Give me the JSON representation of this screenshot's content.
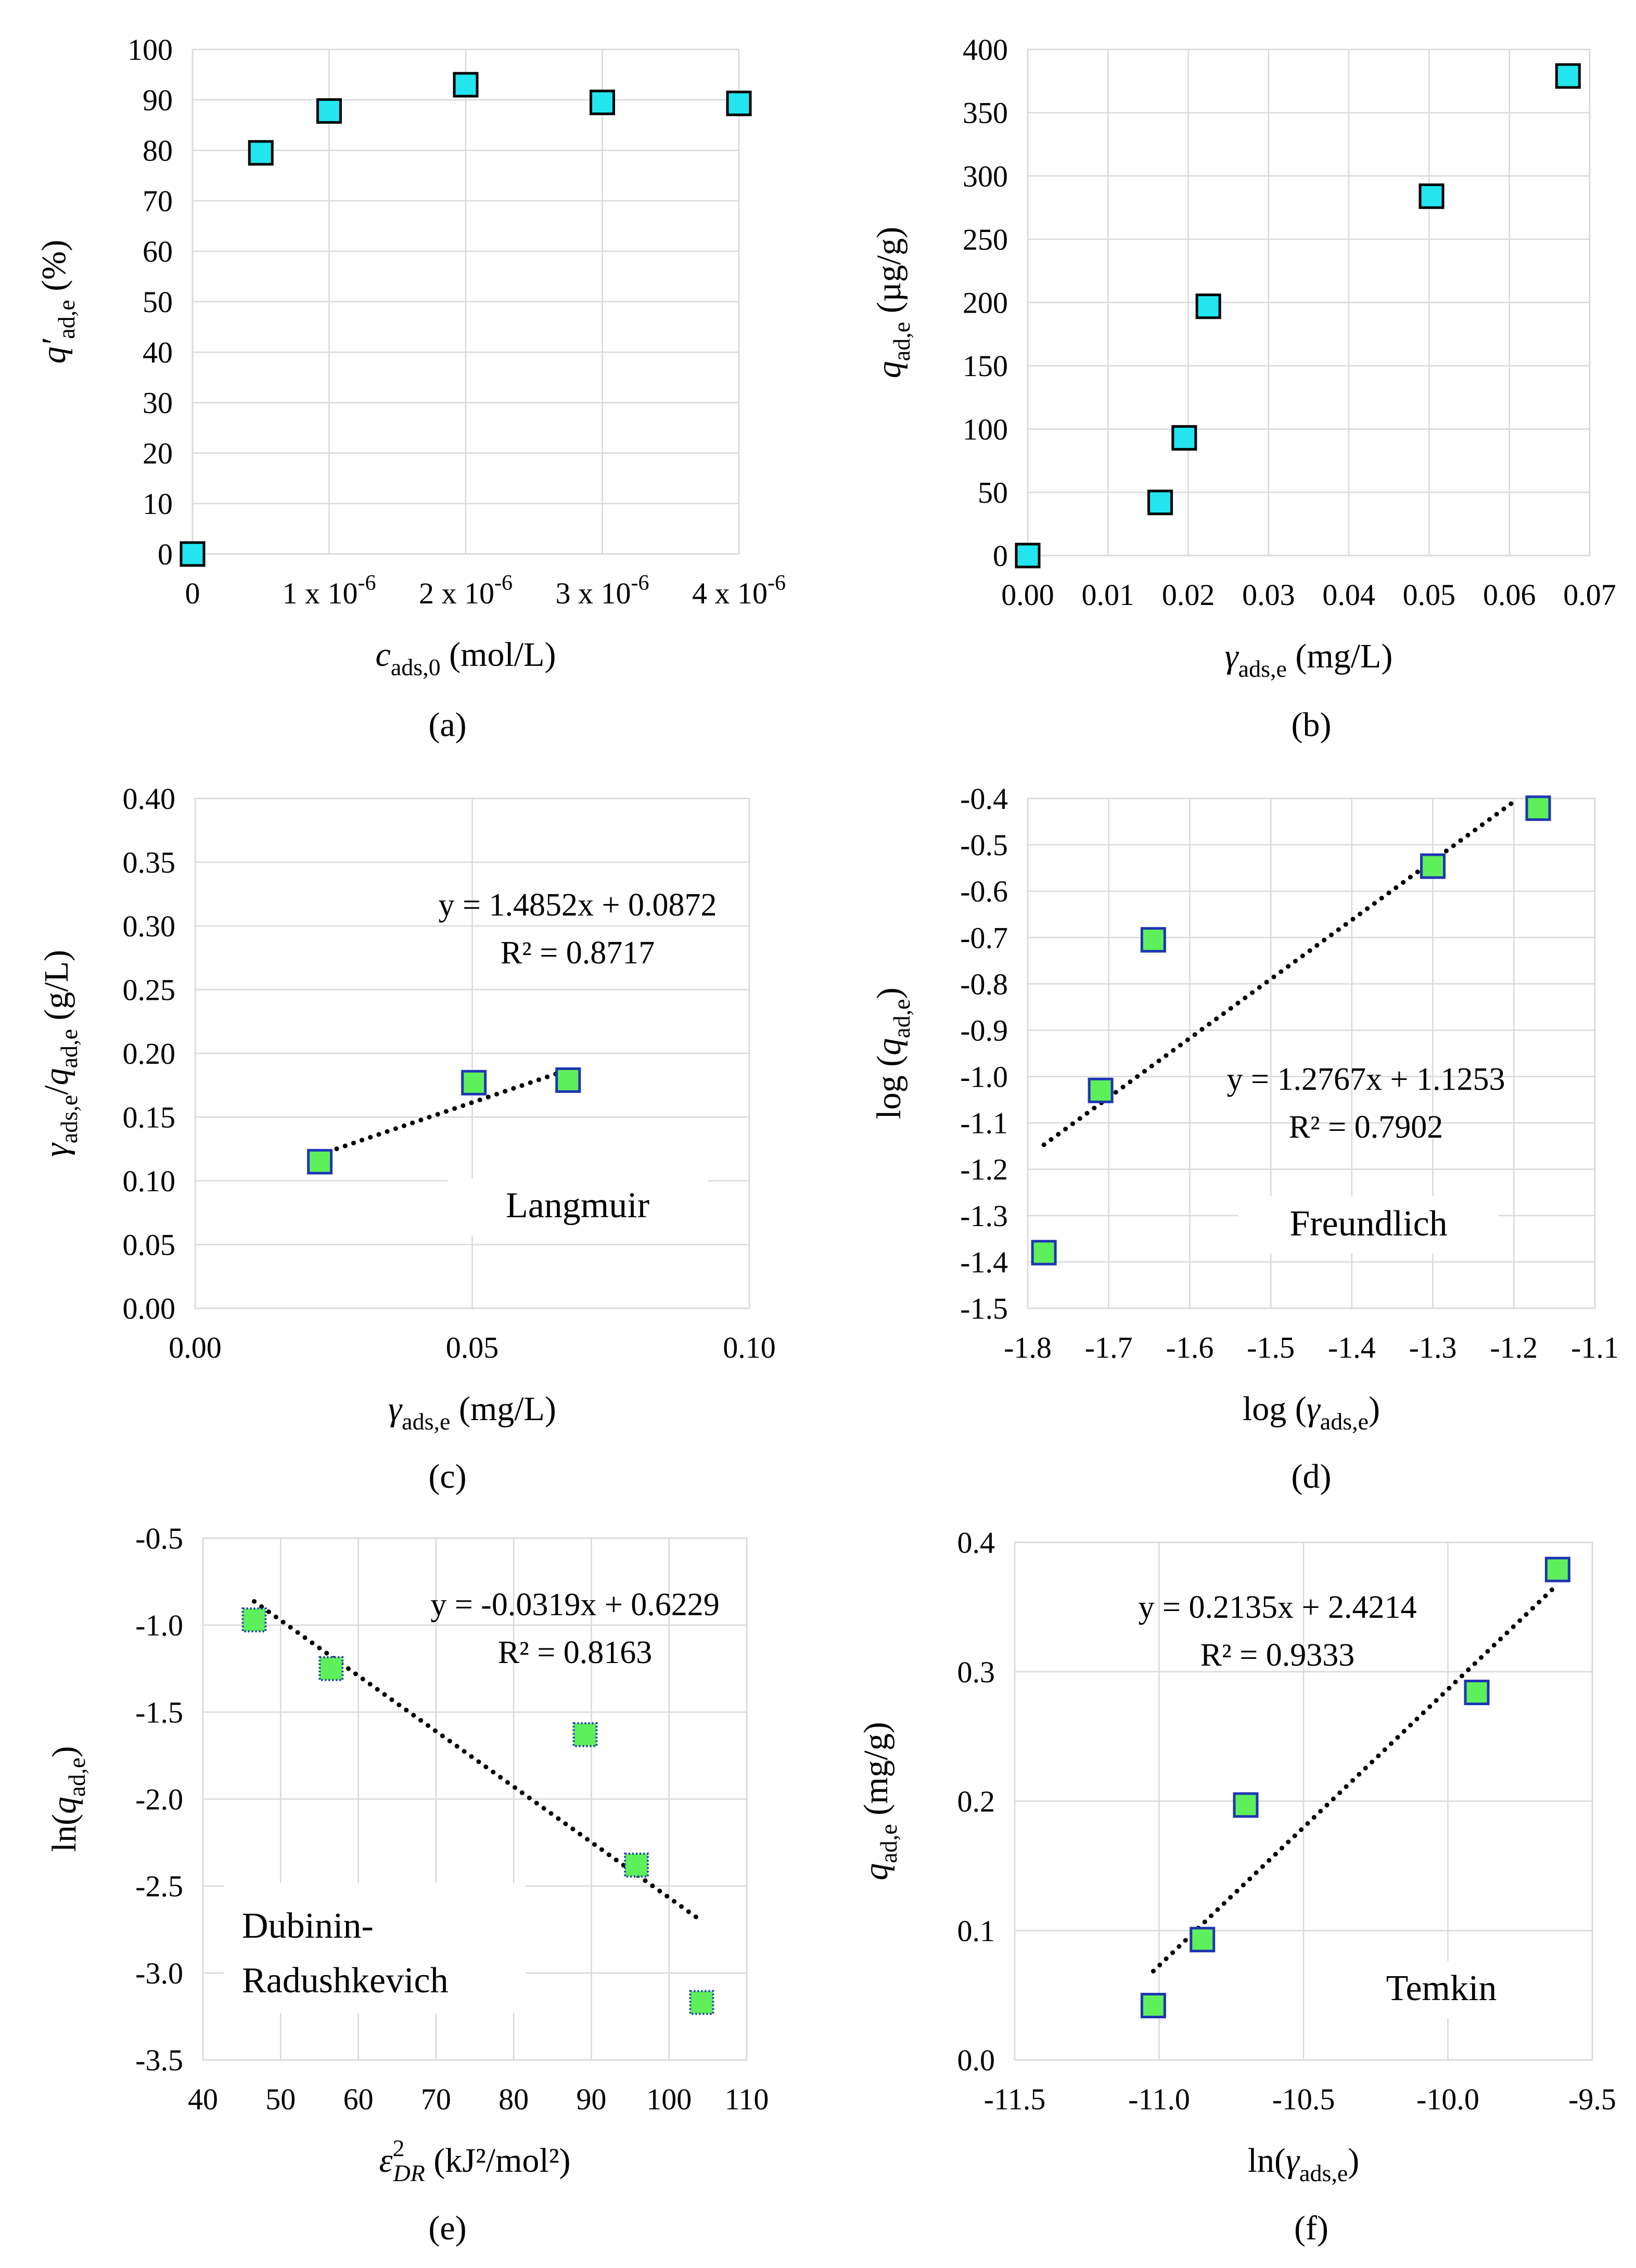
{
  "figure_title": "",
  "colors": {
    "cyan_marker": "#22e5f0",
    "green_marker": "#5ef05a",
    "marker_edge": "#000000",
    "marker_edge_blue": "#1f35b4",
    "grid": "#d9d9d9",
    "trend": "#000000"
  },
  "chart_data": [
    {
      "id": "a",
      "type": "scatter",
      "panel_label": "(a)",
      "xlabel_parts": {
        "sym": "c",
        "sub": "ads,0",
        "unit": " (mol/L)"
      },
      "ylabel_parts": {
        "sym": "q′",
        "sub": "ad,e",
        "unit": " (%)"
      },
      "x": [
        0,
        5e-07,
        1e-06,
        2e-06,
        3e-06,
        4e-06
      ],
      "y": [
        0,
        79.5,
        87.8,
        93.0,
        89.5,
        89.3
      ],
      "xlim": [
        0,
        4e-06
      ],
      "ylim": [
        0,
        100
      ],
      "xticks": [
        {
          "v": 0,
          "m": "0",
          "e": ""
        },
        {
          "v": 1e-06,
          "m": "1 x 10",
          "e": "-6"
        },
        {
          "v": 2e-06,
          "m": "2 x 10",
          "e": "-6"
        },
        {
          "v": 3e-06,
          "m": "3 x 10",
          "e": "-6"
        },
        {
          "v": 4e-06,
          "m": "4 x 10",
          "e": "-6"
        }
      ],
      "yticks": [
        0,
        10,
        20,
        30,
        40,
        50,
        60,
        70,
        80,
        90,
        100
      ],
      "ytick_labels": [
        "0",
        "10",
        "20",
        "30",
        "40",
        "50",
        "60",
        "70",
        "80",
        "90",
        "100"
      ],
      "marker": "cyan",
      "trendline": null,
      "equation": "",
      "r2": "",
      "isotherm_name": ""
    },
    {
      "id": "b",
      "type": "scatter",
      "panel_label": "(b)",
      "xlabel_parts": {
        "sym": "γ",
        "sub": "ads,e",
        "unit": " (mg/L)"
      },
      "ylabel_parts": {
        "sym": "q",
        "sub": "ad,e",
        "unit": " (µg/g)"
      },
      "x": [
        0,
        0.0165,
        0.0195,
        0.0225,
        0.0503,
        0.0673
      ],
      "y": [
        0,
        42,
        93,
        197,
        284,
        379
      ],
      "xlim": [
        0,
        0.07
      ],
      "ylim": [
        0,
        400
      ],
      "xticks": [
        {
          "v": 0,
          "m": "0.00",
          "e": ""
        },
        {
          "v": 0.01,
          "m": "0.01",
          "e": ""
        },
        {
          "v": 0.02,
          "m": "0.02",
          "e": ""
        },
        {
          "v": 0.03,
          "m": "0.03",
          "e": ""
        },
        {
          "v": 0.04,
          "m": "0.04",
          "e": ""
        },
        {
          "v": 0.05,
          "m": "0.05",
          "e": ""
        },
        {
          "v": 0.06,
          "m": "0.06",
          "e": ""
        },
        {
          "v": 0.07,
          "m": "0.07",
          "e": ""
        }
      ],
      "yticks": [
        0,
        50,
        100,
        150,
        200,
        250,
        300,
        350,
        400
      ],
      "ytick_labels": [
        "0",
        "50",
        "100",
        "150",
        "200",
        "250",
        "300",
        "350",
        "400"
      ],
      "marker": "cyan",
      "trendline": null,
      "equation": "",
      "r2": "",
      "isotherm_name": ""
    },
    {
      "id": "c",
      "type": "scatter",
      "panel_label": "(c)",
      "xlabel_parts": {
        "sym": "γ",
        "sub": "ads,e",
        "unit": " (mg/L)"
      },
      "ylabel_parts": {
        "sym": "γ",
        "sub": "ads,e",
        "mid": "/",
        "sym2": "q",
        "sub2": "ad,e",
        "unit": "  (g/L)"
      },
      "x": [
        0.0225,
        0.0503,
        0.0673
      ],
      "y": [
        0.115,
        0.177,
        0.179
      ],
      "xlim": [
        0,
        0.1
      ],
      "ylim": [
        0,
        0.4
      ],
      "xticks": [
        {
          "v": 0,
          "m": "0.00",
          "e": ""
        },
        {
          "v": 0.05,
          "m": "0.05",
          "e": ""
        },
        {
          "v": 0.1,
          "m": "0.10",
          "e": ""
        }
      ],
      "yticks": [
        0,
        0.05,
        0.1,
        0.15,
        0.2,
        0.25,
        0.3,
        0.35,
        0.4
      ],
      "ytick_labels": [
        "0.00",
        "0.05",
        "0.10",
        "0.15",
        "0.20",
        "0.25",
        "0.30",
        "0.35",
        "0.40"
      ],
      "marker": "green",
      "trendline": {
        "slope": 1.4852,
        "intercept": 0.0872,
        "x_from": 0.0225,
        "x_to": 0.0673
      },
      "equation": "y = 1.4852x + 0.0872",
      "r2": "R² = 0.8717",
      "isotherm_name": "Langmuir"
    },
    {
      "id": "d",
      "type": "scatter",
      "panel_label": "(d)",
      "xlabel_parts": {
        "pre": "log (",
        "sym": "γ",
        "sub": "ads,e",
        "unit": ")"
      },
      "ylabel_parts": {
        "pre": "log (",
        "sym": "q",
        "sub": "ad,e",
        "unit": ")"
      },
      "x": [
        -1.78,
        -1.71,
        -1.645,
        -1.3,
        -1.17
      ],
      "y": [
        -1.38,
        -1.03,
        -0.705,
        -0.546,
        -0.421
      ],
      "xlim": [
        -1.8,
        -1.1
      ],
      "ylim": [
        -1.5,
        -0.4
      ],
      "xticks": [
        {
          "v": -1.8,
          "m": "-1.8",
          "e": ""
        },
        {
          "v": -1.7,
          "m": "-1.7",
          "e": ""
        },
        {
          "v": -1.6,
          "m": "-1.6",
          "e": ""
        },
        {
          "v": -1.5,
          "m": "-1.5",
          "e": ""
        },
        {
          "v": -1.4,
          "m": "-1.4",
          "e": ""
        },
        {
          "v": -1.3,
          "m": "-1.3",
          "e": ""
        },
        {
          "v": -1.2,
          "m": "-1.2",
          "e": ""
        },
        {
          "v": -1.1,
          "m": "-1.1",
          "e": ""
        }
      ],
      "yticks": [
        -1.5,
        -1.4,
        -1.3,
        -1.2,
        -1.1,
        -1.0,
        -0.9,
        -0.8,
        -0.7,
        -0.6,
        -0.5,
        -0.4
      ],
      "ytick_labels": [
        "-1.5",
        "-1.4",
        "-1.3",
        "-1.2",
        "-1.1",
        "-1.0",
        "-0.9",
        "-0.8",
        "-0.7",
        "-0.6",
        "-0.5",
        "-0.4"
      ],
      "marker": "green",
      "trendline": {
        "slope": 1.2767,
        "intercept": 1.1253,
        "x_from": -1.78,
        "x_to": -1.195
      },
      "equation": "y = 1.2767x + 1.1253",
      "r2": "R² = 0.7902",
      "isotherm_name": "Freundlich"
    },
    {
      "id": "e",
      "type": "scatter",
      "panel_label": "(e)",
      "xlabel_parts": {
        "sym": "ε",
        "sup": "2",
        "sub": "DR",
        "unit": " (kJ²/mol²)"
      },
      "ylabel_parts": {
        "pre": "ln(",
        "sym": "q",
        "sub": "ad,e",
        "unit": ")"
      },
      "x": [
        46.6,
        56.5,
        89.2,
        95.8,
        104.2
      ],
      "y": [
        -0.97,
        -1.25,
        -1.63,
        -2.38,
        -3.17
      ],
      "xlim": [
        40,
        110
      ],
      "ylim": [
        -3.5,
        -0.5
      ],
      "xticks": [
        {
          "v": 40,
          "m": "40",
          "e": ""
        },
        {
          "v": 50,
          "m": "50",
          "e": ""
        },
        {
          "v": 60,
          "m": "60",
          "e": ""
        },
        {
          "v": 70,
          "m": "70",
          "e": ""
        },
        {
          "v": 80,
          "m": "80",
          "e": ""
        },
        {
          "v": 90,
          "m": "90",
          "e": ""
        },
        {
          "v": 100,
          "m": "100",
          "e": ""
        },
        {
          "v": 110,
          "m": "110",
          "e": ""
        }
      ],
      "yticks": [
        -3.5,
        -3.0,
        -2.5,
        -2.0,
        -1.5,
        -1.0,
        -0.5
      ],
      "ytick_labels": [
        "-3.5",
        "-3.0",
        "-2.5",
        "-2.0",
        "-1.5",
        "-1.0",
        "-0.5"
      ],
      "marker": "green-dotted",
      "trendline": {
        "slope": -0.0319,
        "intercept": 0.6229,
        "x_from": 46.6,
        "x_to": 104.2
      },
      "equation": "y = -0.0319x + 0.6229",
      "r2": "R² = 0.8163",
      "isotherm_name": "Dubinin-\nRadushkevich"
    },
    {
      "id": "f",
      "type": "scatter",
      "panel_label": "(f)",
      "xlabel_parts": {
        "pre": "ln(",
        "sym": "γ",
        "sub": "ads,e",
        "unit": ")"
      },
      "ylabel_parts": {
        "sym": "q",
        "sub": "ad,e",
        "unit": "  (mg/g)"
      },
      "x": [
        -11.02,
        -10.85,
        -10.7,
        -9.9,
        -9.62
      ],
      "y": [
        0.042,
        0.093,
        0.197,
        0.284,
        0.379
      ],
      "xlim": [
        -11.5,
        -9.5
      ],
      "ylim": [
        0,
        0.4
      ],
      "xticks": [
        {
          "v": -11.5,
          "m": "-11.5",
          "e": ""
        },
        {
          "v": -11.0,
          "m": "-11.0",
          "e": ""
        },
        {
          "v": -10.5,
          "m": "-10.5",
          "e": ""
        },
        {
          "v": -10.0,
          "m": "-10.0",
          "e": ""
        },
        {
          "v": -9.5,
          "m": "-9.5",
          "e": ""
        }
      ],
      "yticks": [
        0,
        0.1,
        0.2,
        0.3,
        0.4
      ],
      "ytick_labels": [
        "0.0",
        "0.1",
        "0.2",
        "0.3",
        "0.4"
      ],
      "marker": "green",
      "trendline": {
        "slope": 0.2135,
        "intercept": 2.4214,
        "x_from": -11.02,
        "x_to": -9.62
      },
      "equation": "y = 0.2135x + 2.4214",
      "r2": "R² = 0.9333",
      "isotherm_name": "Temkin"
    }
  ]
}
